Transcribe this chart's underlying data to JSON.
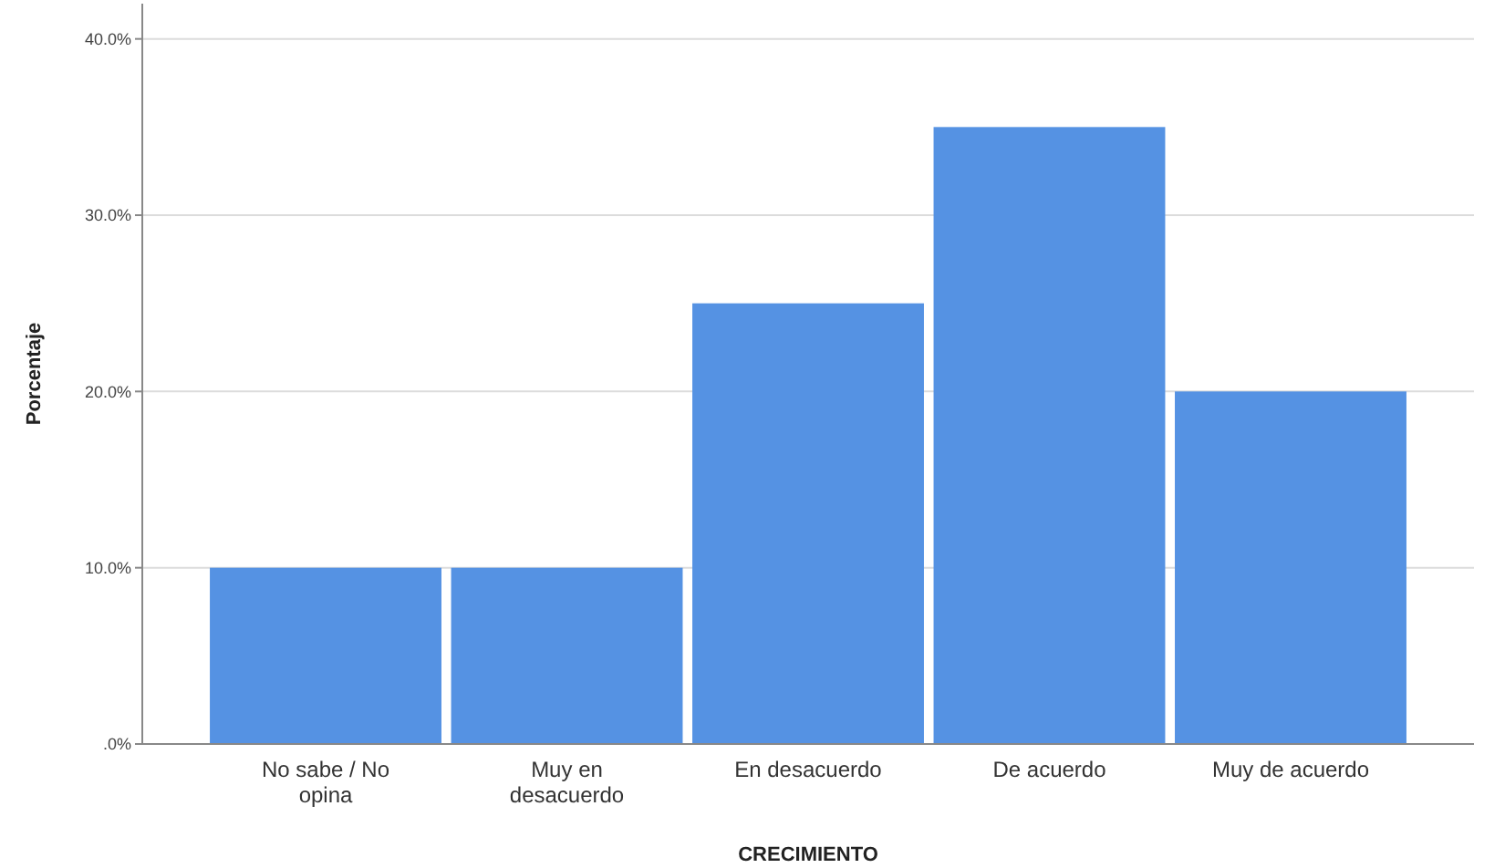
{
  "chart_data": {
    "type": "bar",
    "xlabel": "CRECIMIENTO",
    "ylabel": "Porcentaje",
    "categories": [
      "No sabe / No opina",
      "Muy en desacuerdo",
      "En desacuerdo",
      "De acuerdo",
      "Muy de acuerdo"
    ],
    "values": [
      10,
      10,
      25,
      35,
      20
    ],
    "color": "#5592e3",
    "ylim": [
      0,
      42
    ],
    "yticks": [
      {
        "value": 0,
        "label": ".0%"
      },
      {
        "value": 10,
        "label": "10.0%"
      },
      {
        "value": 20,
        "label": "20.0%"
      },
      {
        "value": 30,
        "label": "30.0%"
      },
      {
        "value": 40,
        "label": "40.0%"
      }
    ],
    "grid": "y"
  }
}
